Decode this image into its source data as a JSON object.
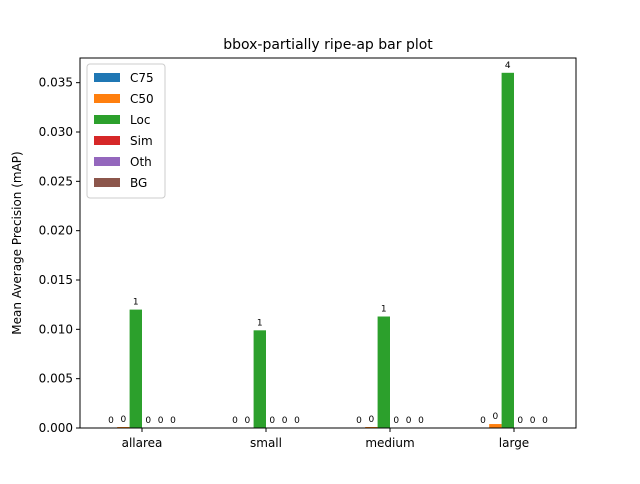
{
  "chart_data": {
    "type": "bar",
    "title": "bbox-partially ripe-ap bar plot",
    "xlabel": "",
    "ylabel": "Mean Average Precision (mAP)",
    "categories": [
      "allarea",
      "small",
      "medium",
      "large"
    ],
    "ylim": [
      0,
      0.0375
    ],
    "yticks": [
      "0.000",
      "0.005",
      "0.010",
      "0.015",
      "0.020",
      "0.025",
      "0.030",
      "0.035"
    ],
    "grid": false,
    "legend_position": "top-left",
    "series": [
      {
        "name": "C75",
        "color": "#1f77b4",
        "values": [
          0.0,
          0.0,
          0.0,
          0.0
        ],
        "labels": [
          "0",
          "0",
          "0",
          "0"
        ]
      },
      {
        "name": "C50",
        "color": "#ff7f0e",
        "values": [
          0.0001,
          0.0,
          0.0001,
          0.0004
        ],
        "labels": [
          "0",
          "0",
          "0",
          "0"
        ]
      },
      {
        "name": "Loc",
        "color": "#2ca02c",
        "values": [
          0.012,
          0.0099,
          0.0113,
          0.036
        ],
        "labels": [
          "1",
          "1",
          "1",
          "4"
        ]
      },
      {
        "name": "Sim",
        "color": "#d62728",
        "values": [
          0.0,
          0.0,
          0.0,
          0.0
        ],
        "labels": [
          "0",
          "0",
          "0",
          "0"
        ]
      },
      {
        "name": "Oth",
        "color": "#9467bd",
        "values": [
          0.0,
          0.0,
          0.0,
          0.0
        ],
        "labels": [
          "0",
          "0",
          "0",
          "0"
        ]
      },
      {
        "name": "BG",
        "color": "#8c564b",
        "values": [
          0.0,
          0.0,
          0.0,
          0.0
        ],
        "labels": [
          "0",
          "0",
          "0",
          "0"
        ]
      }
    ]
  }
}
